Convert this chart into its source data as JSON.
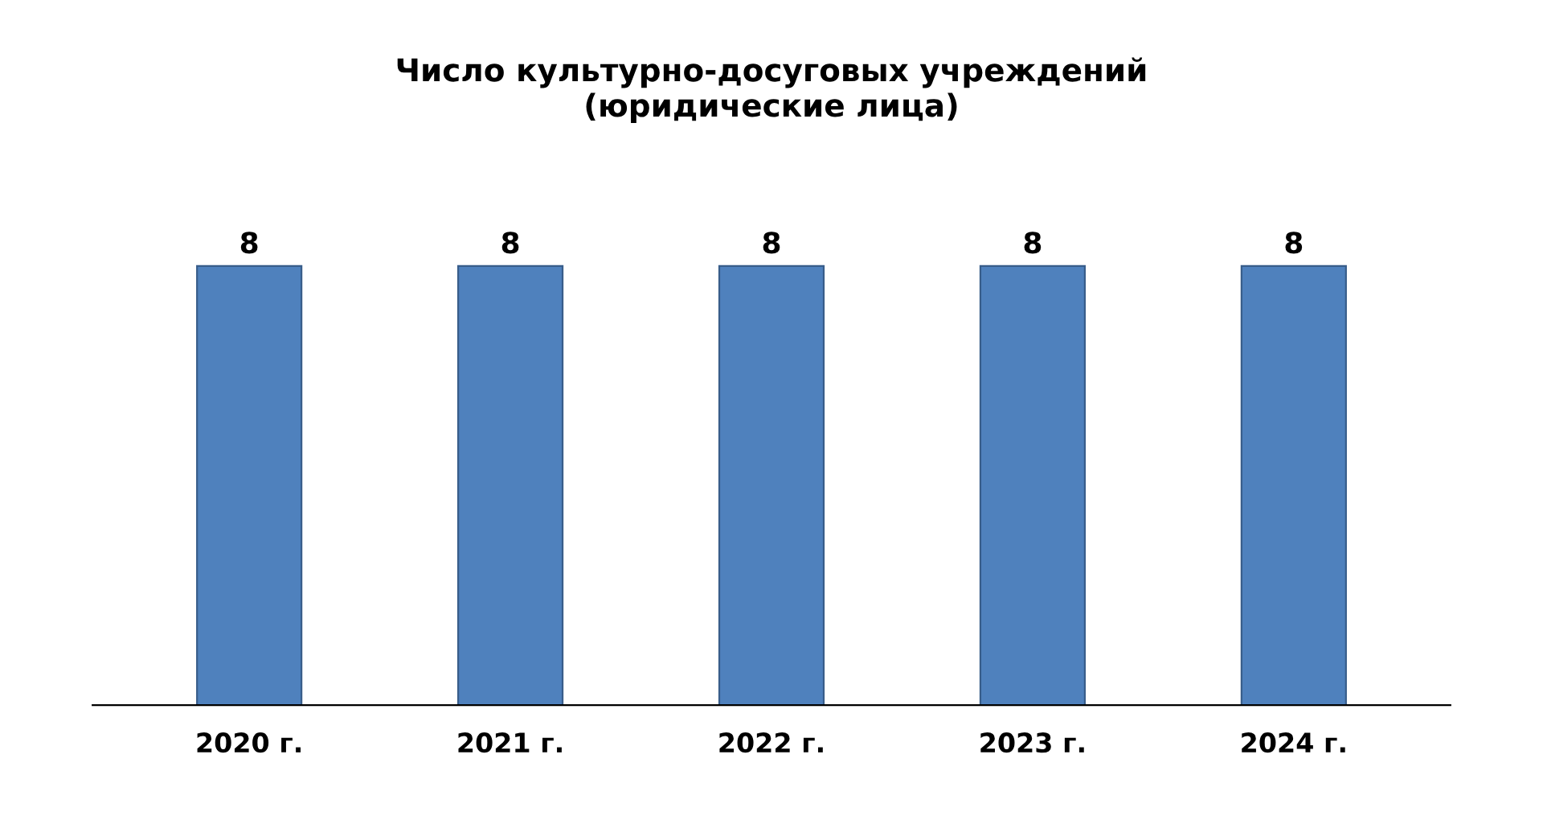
{
  "chart_data": {
    "type": "bar",
    "title": "Число культурно-досуговых учреждений\n(юридические лица)",
    "categories": [
      "2020 г.",
      "2021 г.",
      "2022 г.",
      "2023 г.",
      "2024 г."
    ],
    "values": [
      8,
      8,
      8,
      8,
      8
    ],
    "color": "#4f81bd",
    "data_labels": true,
    "grid": false,
    "legend": false
  }
}
